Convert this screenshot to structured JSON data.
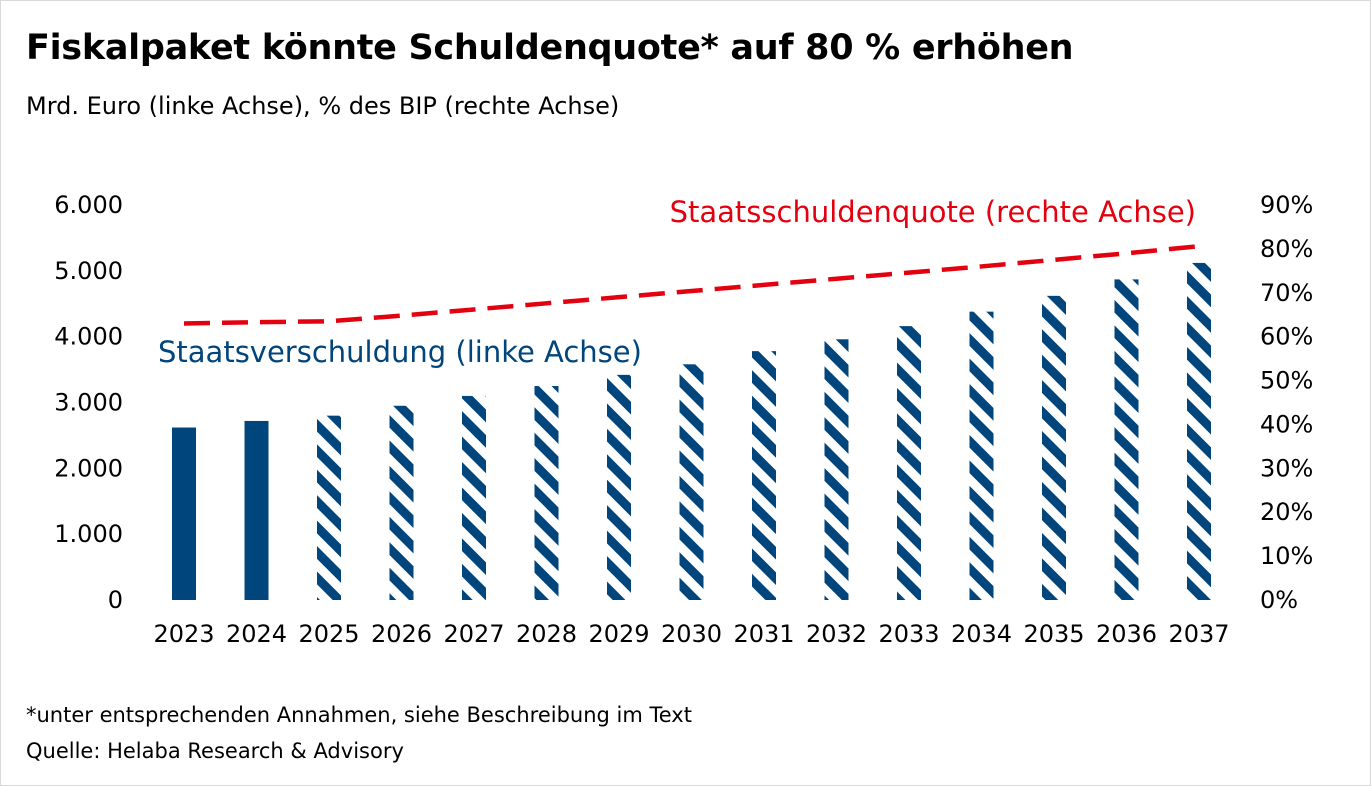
{
  "title": "Fiskalpaket könnte Schuldenquote* auf 80 % erhöhen",
  "subtitle": "Mrd. Euro (linke Achse), % des BIP (rechte Achse)",
  "footnote": "*unter entsprechenden Annahmen, siehe Beschreibung im Text",
  "source": "Quelle: Helaba Research & Advisory",
  "chart_data": {
    "type": "bar",
    "categories": [
      "2023",
      "2024",
      "2025",
      "2026",
      "2027",
      "2028",
      "2029",
      "2030",
      "2031",
      "2032",
      "2033",
      "2034",
      "2035",
      "2036",
      "2037"
    ],
    "series": [
      {
        "name": "Staatsverschuldung (linke Achse)",
        "type": "bar",
        "axis": "left",
        "color": "#00457c",
        "values": [
          2620,
          2720,
          2800,
          2950,
          3100,
          3250,
          3420,
          3580,
          3780,
          3960,
          4160,
          4380,
          4620,
          4870,
          5120
        ],
        "style": [
          "solid",
          "solid",
          "hatched",
          "hatched",
          "hatched",
          "hatched",
          "hatched",
          "hatched",
          "hatched",
          "hatched",
          "hatched",
          "hatched",
          "hatched",
          "hatched",
          "hatched"
        ]
      },
      {
        "name": "Staatsschuldenquote (rechte Achse)",
        "type": "line",
        "axis": "right",
        "color": "#e3000f",
        "dashed": true,
        "values": [
          63,
          63.3,
          63.5,
          64.8,
          66.2,
          67.6,
          69.0,
          70.4,
          71.8,
          73.2,
          74.6,
          76.0,
          77.5,
          79.0,
          80.6
        ]
      }
    ],
    "y_left": {
      "min": 0,
      "max": 6000,
      "ticks": [
        "0",
        "1.000",
        "2.000",
        "3.000",
        "4.000",
        "5.000",
        "6.000"
      ]
    },
    "y_right": {
      "min": 0,
      "max": 90,
      "ticks": [
        "0%",
        "10%",
        "20%",
        "30%",
        "40%",
        "50%",
        "60%",
        "70%",
        "80%",
        "90%"
      ]
    },
    "grid": false,
    "legend": "inline"
  }
}
